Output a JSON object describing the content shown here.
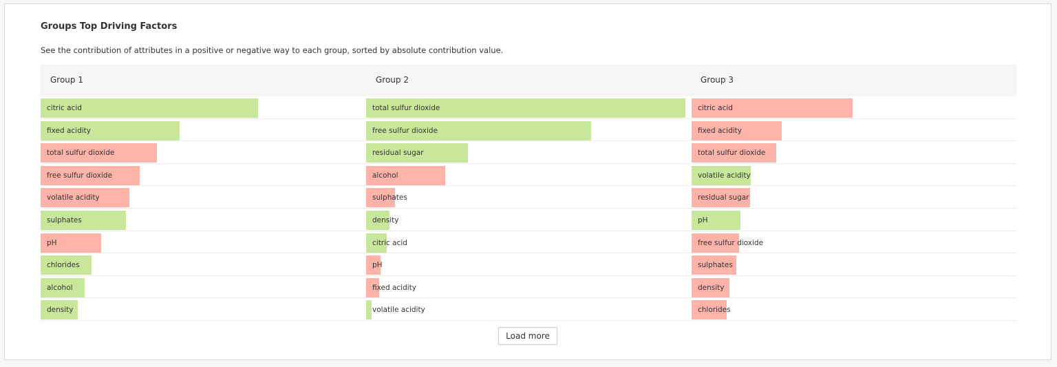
{
  "title": "Groups Top Driving Factors",
  "subtitle": "See the contribution of attributes in a positive or negative way to each group, sorted by absolute contribution value.",
  "load_more_label": "Load more",
  "colors": {
    "positive": "#c9e79a",
    "negative": "#feb3a9"
  },
  "chart_data": {
    "type": "bar",
    "orientation": "horizontal",
    "groups": [
      {
        "name": "Group 1",
        "items": [
          {
            "label": "citric acid",
            "magnitude": 0.68,
            "sign": "positive"
          },
          {
            "label": "fixed acidity",
            "magnitude": 0.435,
            "sign": "positive"
          },
          {
            "label": "total sulfur dioxide",
            "magnitude": 0.365,
            "sign": "negative"
          },
          {
            "label": "free sulfur dioxide",
            "magnitude": 0.31,
            "sign": "negative"
          },
          {
            "label": "volatile acidity",
            "magnitude": 0.278,
            "sign": "negative"
          },
          {
            "label": "sulphates",
            "magnitude": 0.268,
            "sign": "positive"
          },
          {
            "label": "pH",
            "magnitude": 0.19,
            "sign": "negative"
          },
          {
            "label": "chlorides",
            "magnitude": 0.16,
            "sign": "positive"
          },
          {
            "label": "alcohol",
            "magnitude": 0.138,
            "sign": "positive"
          },
          {
            "label": "density",
            "magnitude": 0.117,
            "sign": "positive"
          }
        ]
      },
      {
        "name": "Group 2",
        "items": [
          {
            "label": "total sulfur dioxide",
            "magnitude": 1.0,
            "sign": "positive"
          },
          {
            "label": "free sulfur dioxide",
            "magnitude": 0.705,
            "sign": "positive"
          },
          {
            "label": "residual sugar",
            "magnitude": 0.318,
            "sign": "positive"
          },
          {
            "label": "alcohol",
            "magnitude": 0.247,
            "sign": "negative"
          },
          {
            "label": "sulphates",
            "magnitude": 0.09,
            "sign": "negative"
          },
          {
            "label": "density",
            "magnitude": 0.073,
            "sign": "positive"
          },
          {
            "label": "citric acid",
            "magnitude": 0.065,
            "sign": "positive"
          },
          {
            "label": "pH",
            "magnitude": 0.045,
            "sign": "negative"
          },
          {
            "label": "fixed acidity",
            "magnitude": 0.04,
            "sign": "negative"
          },
          {
            "label": "volatile acidity",
            "magnitude": 0.017,
            "sign": "positive"
          }
        ]
      },
      {
        "name": "Group 3",
        "items": [
          {
            "label": "citric acid",
            "magnitude": 0.505,
            "sign": "negative"
          },
          {
            "label": "fixed acidity",
            "magnitude": 0.283,
            "sign": "negative"
          },
          {
            "label": "total sulfur dioxide",
            "magnitude": 0.266,
            "sign": "negative"
          },
          {
            "label": "volatile acidity",
            "magnitude": 0.185,
            "sign": "positive"
          },
          {
            "label": "residual sugar",
            "magnitude": 0.183,
            "sign": "negative"
          },
          {
            "label": "pH",
            "magnitude": 0.153,
            "sign": "positive"
          },
          {
            "label": "free sulfur dioxide",
            "magnitude": 0.149,
            "sign": "negative"
          },
          {
            "label": "sulphates",
            "magnitude": 0.14,
            "sign": "negative"
          },
          {
            "label": "density",
            "magnitude": 0.118,
            "sign": "negative"
          },
          {
            "label": "chlorides",
            "magnitude": 0.11,
            "sign": "negative"
          }
        ]
      }
    ]
  }
}
